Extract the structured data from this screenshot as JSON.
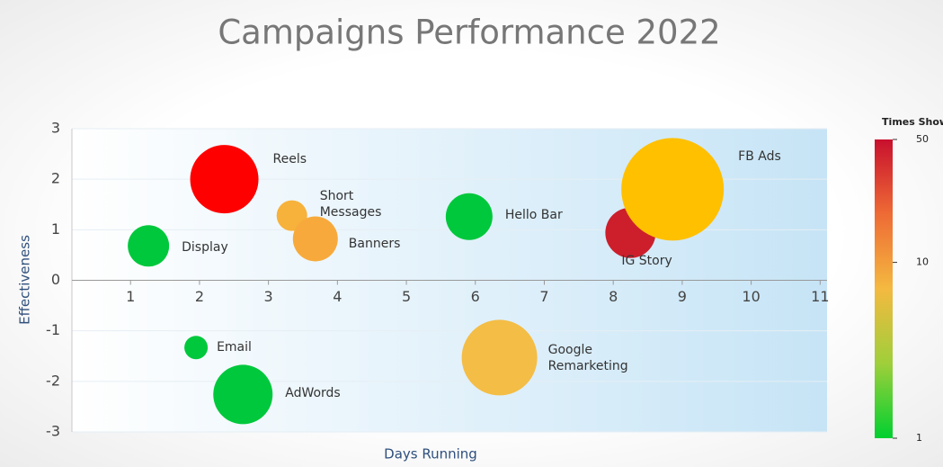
{
  "chart_data": {
    "type": "bubble",
    "title": "Campaigns Performance 2022",
    "x_label": "Days Running",
    "y_label": "Effectiveness",
    "xlim": [
      0.15,
      11.1
    ],
    "xticks": [
      1,
      2,
      3,
      4,
      5,
      6,
      7,
      8,
      9,
      10,
      11
    ],
    "ylim": [
      -3,
      3
    ],
    "yticks": [
      -3,
      -2,
      -1,
      0,
      1,
      2,
      3
    ],
    "grid": true,
    "series": [
      {
        "name": "Reels",
        "color": "#ff0000",
        "x": [
          2.36
        ],
        "y": [
          2.0
        ],
        "size": [
          38
        ]
      },
      {
        "name": "Short Messages",
        "color": "#f7b23b",
        "x": [
          3.34
        ],
        "y": [
          1.28
        ],
        "size": [
          17
        ]
      },
      {
        "name": "Banners",
        "color": "#f7aa3b",
        "x": [
          3.68
        ],
        "y": [
          0.82
        ],
        "size": [
          25
        ]
      },
      {
        "name": "Display",
        "color": "#00c83c",
        "x": [
          1.26
        ],
        "y": [
          0.68
        ],
        "size": [
          23
        ]
      },
      {
        "name": "Hello Bar",
        "color": "#00c83c",
        "x": [
          5.91
        ],
        "y": [
          1.26
        ],
        "size": [
          26
        ]
      },
      {
        "name": "IG Story",
        "color": "#cc1f2b",
        "x": [
          8.25
        ],
        "y": [
          0.94
        ],
        "size": [
          28
        ]
      },
      {
        "name": "FB Ads",
        "color": "#ffc000",
        "x": [
          8.86
        ],
        "y": [
          1.8
        ],
        "size": [
          57
        ]
      },
      {
        "name": "Email",
        "color": "#00c83c",
        "x": [
          1.95
        ],
        "y": [
          -1.33
        ],
        "size": [
          13
        ]
      },
      {
        "name": "AdWords",
        "color": "#00c83c",
        "x": [
          2.63
        ],
        "y": [
          -2.26
        ],
        "size": [
          33
        ]
      },
      {
        "name": "Google Remarketing",
        "color": "#f4bd45",
        "x": [
          6.35
        ],
        "y": [
          -1.53
        ],
        "size": [
          42
        ]
      }
    ],
    "colorbar": {
      "title": "Times Shown",
      "lim": [
        1,
        50
      ],
      "ticks": [
        1,
        10,
        50
      ],
      "log": true,
      "colors": [
        "#00d030",
        "#9fcf3a",
        "#f4b940",
        "#ee6b35",
        "#c8102e"
      ]
    }
  }
}
